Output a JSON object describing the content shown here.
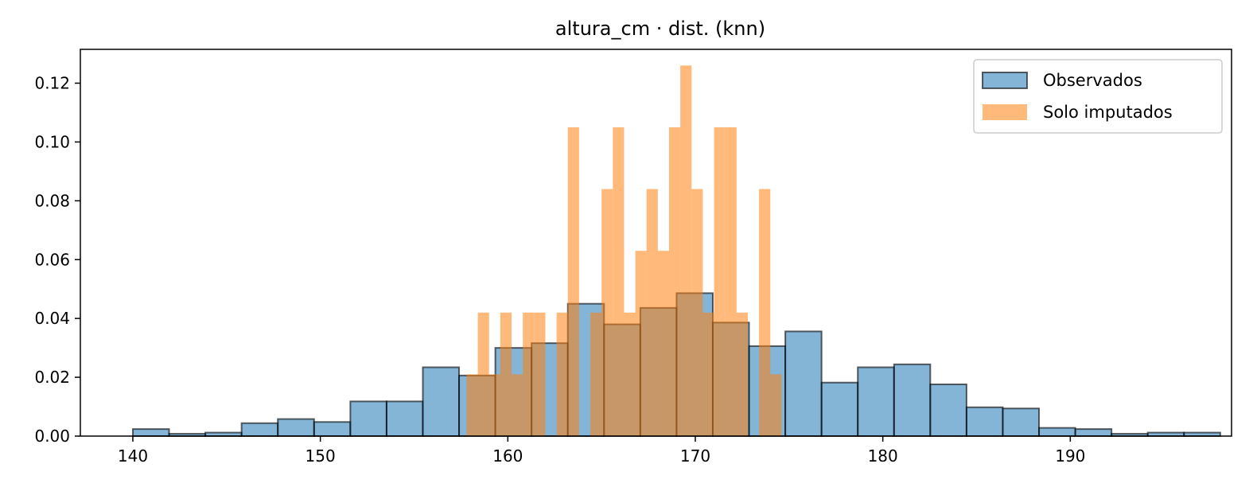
{
  "chart_data": {
    "type": "bar",
    "title": "altura_cm · dist. (knn)",
    "xlabel": "",
    "ylabel": "",
    "xlim": [
      137.2,
      198.6
    ],
    "ylim": [
      0,
      0.1315
    ],
    "xticks": [
      140,
      150,
      160,
      170,
      180,
      190
    ],
    "yticks": [
      0.0,
      0.02,
      0.04,
      0.06,
      0.08,
      0.1,
      0.12
    ],
    "ytick_labels": [
      "0.00",
      "0.02",
      "0.04",
      "0.06",
      "0.08",
      "0.10",
      "0.12"
    ],
    "legend_position": "top-right",
    "grid": false,
    "series": [
      {
        "name": "Observados",
        "color": "#1f77b4",
        "opacity": 0.55,
        "edge_color": "#000000",
        "bin_start": 140,
        "bin_width": 1.9333,
        "values": [
          0.0024,
          0.0008,
          0.0012,
          0.0044,
          0.0058,
          0.0048,
          0.0118,
          0.0118,
          0.0234,
          0.0206,
          0.03,
          0.0316,
          0.045,
          0.038,
          0.0436,
          0.0486,
          0.0386,
          0.0306,
          0.0356,
          0.0182,
          0.0234,
          0.0244,
          0.0176,
          0.0098,
          0.0094,
          0.0028,
          0.0024,
          0.0008,
          0.0012,
          0.0012
        ]
      },
      {
        "name": "Solo imputados",
        "color": "#ff7f0e",
        "opacity": 0.55,
        "edge_color": "none",
        "bin_start": 157.8,
        "bin_width": 0.6,
        "values": [
          0.021,
          0.042,
          0.021,
          0.042,
          0.021,
          0.042,
          0.042,
          0.0,
          0.042,
          0.105,
          0.0,
          0.042,
          0.084,
          0.105,
          0.042,
          0.063,
          0.084,
          0.063,
          0.105,
          0.126,
          0.084,
          0.042,
          0.105,
          0.105,
          0.042,
          0.0,
          0.084,
          0.021,
          0.0,
          0.0
        ]
      }
    ]
  }
}
